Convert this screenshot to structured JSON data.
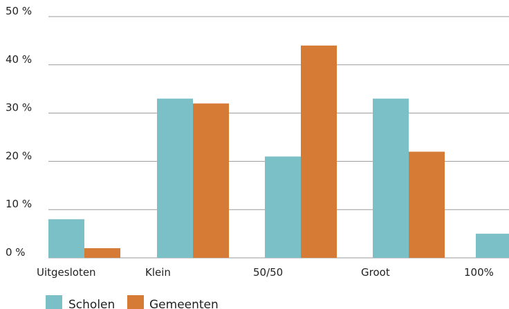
{
  "chart_data": {
    "type": "bar",
    "categories": [
      "Uitgesloten",
      "Klein",
      "50/50",
      "Groot",
      "100%"
    ],
    "series": [
      {
        "name": "Scholen",
        "values": [
          8,
          33,
          21,
          33,
          5
        ],
        "color": "#7bbfc7"
      },
      {
        "name": "Gemeenten",
        "values": [
          2,
          32,
          44,
          22,
          0
        ],
        "color": "#d57b36"
      }
    ],
    "ylim": [
      0,
      50
    ],
    "yticks": [
      0,
      10,
      20,
      30,
      40,
      50
    ],
    "ytick_labels": [
      "0 %",
      "10 %",
      "20 %",
      "30 %",
      "40 %",
      "50 %"
    ],
    "grid": true,
    "legend_position": "bottom-left",
    "gridline_color": "#9a9a9a"
  }
}
